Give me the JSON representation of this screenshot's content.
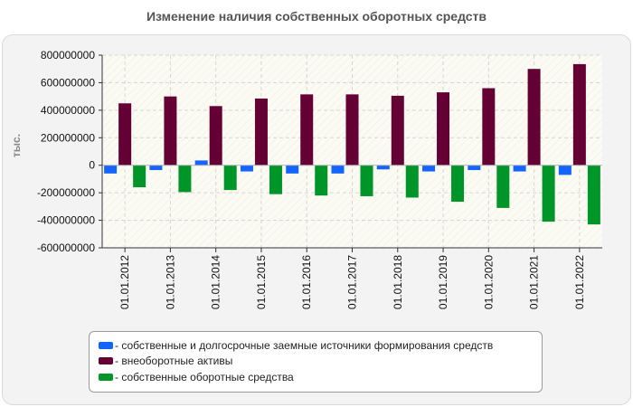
{
  "chart_data": {
    "type": "bar",
    "title": "Изменение наличия собственных оборотных средств",
    "xlabel": "",
    "ylabel": "тыс.",
    "ylim": [
      -600000000,
      800000000
    ],
    "yticks": [
      800000000,
      600000000,
      400000000,
      200000000,
      0,
      -200000000,
      -400000000,
      -600000000
    ],
    "grid": true,
    "legend_position": "bottom",
    "categories": [
      "01.01.2012",
      "01.01.2013",
      "01.01.2014",
      "01.01.2015",
      "01.01.2016",
      "01.01.2017",
      "01.01.2018",
      "01.01.2019",
      "01.01.2020",
      "01.01.2021",
      "01.01.2022"
    ],
    "series": [
      {
        "name": "- собственные и долгосрочные заемные источники формирования средств",
        "color": "#1464ff",
        "values": [
          -60000000,
          -35000000,
          35000000,
          -45000000,
          -60000000,
          -60000000,
          -30000000,
          -45000000,
          -35000000,
          -45000000,
          -70000000
        ]
      },
      {
        "name": "- внеоборотные активы",
        "color": "#650035",
        "values": [
          450000000,
          500000000,
          430000000,
          485000000,
          515000000,
          515000000,
          505000000,
          530000000,
          560000000,
          700000000,
          735000000
        ]
      },
      {
        "name": "- собственные оборотные средства",
        "color": "#009528",
        "values": [
          -160000000,
          -195000000,
          -180000000,
          -210000000,
          -220000000,
          -225000000,
          -235000000,
          -265000000,
          -310000000,
          -410000000,
          -430000000
        ]
      }
    ]
  }
}
